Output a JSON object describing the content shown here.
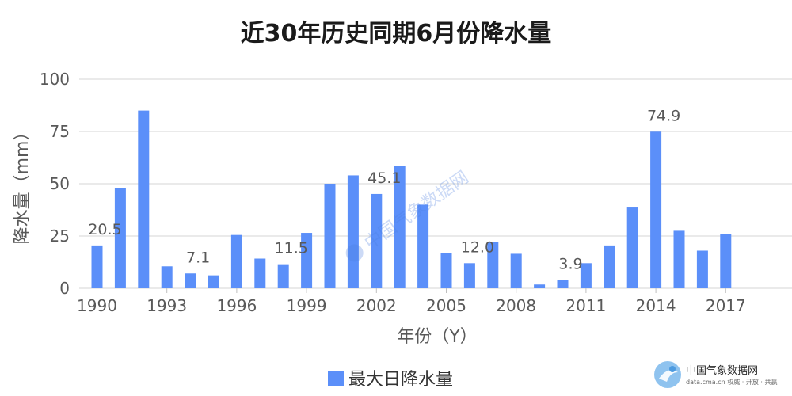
{
  "chart_data": {
    "type": "bar",
    "title": "近30年历史同期6月份降水量",
    "xlabel": "年份（Y）",
    "ylabel": "降水量（mm）",
    "ylim": [
      0,
      100
    ],
    "y_ticks": [
      "0",
      "25",
      "50",
      "75",
      "100"
    ],
    "x_tick_labels": [
      "1990",
      "1993",
      "1996",
      "1999",
      "2002",
      "2005",
      "2008",
      "2011",
      "2014",
      "2017"
    ],
    "categories": [
      "1990",
      "1991",
      "1992",
      "1993",
      "1994",
      "1995",
      "1996",
      "1997",
      "1998",
      "1999",
      "2000",
      "2001",
      "2002",
      "2003",
      "2004",
      "2005",
      "2006",
      "2007",
      "2008",
      "2009",
      "2010",
      "2011",
      "2012",
      "2013",
      "2014",
      "2015",
      "2016",
      "2017",
      "2018"
    ],
    "series": [
      {
        "name": "最大日降水量",
        "color": "#5b8ff9",
        "values": [
          20.5,
          48,
          85,
          10.5,
          7.1,
          6.2,
          25.5,
          14.2,
          11.5,
          26.5,
          50,
          54,
          45.1,
          58.5,
          40,
          17,
          12.0,
          22,
          16.5,
          1.8,
          3.9,
          12,
          20.5,
          39,
          74.9,
          27.5,
          18,
          26,
          0
        ]
      }
    ],
    "data_labels": [
      {
        "category": "1990",
        "text": "20.5"
      },
      {
        "category": "1994",
        "text": "7.1"
      },
      {
        "category": "1998",
        "text": "11.5"
      },
      {
        "category": "2002",
        "text": "45.1"
      },
      {
        "category": "2006",
        "text": "12.0"
      },
      {
        "category": "2010",
        "text": "3.9"
      },
      {
        "category": "2014",
        "text": "74.9"
      }
    ],
    "grid": true,
    "legend_position": "bottom-center"
  },
  "watermark": {
    "center_text": "中国气象数据网",
    "logo_title": "中国气象数据网",
    "logo_subtitle": "data.cma.cn 权威 · 开放 · 共赢"
  }
}
